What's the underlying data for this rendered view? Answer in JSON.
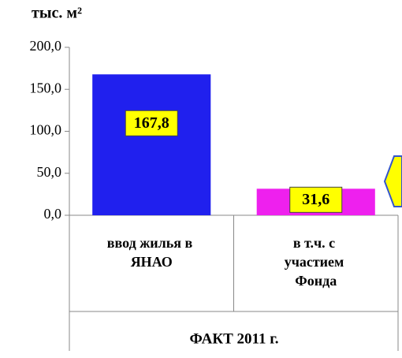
{
  "chart_data": {
    "type": "bar",
    "y_axis_label": "тыс. м²",
    "group_label": "ФАКТ 2011 г.",
    "categories": [
      "ввод жилья в ЯНАО",
      "в т.ч. с участием Фонда"
    ],
    "values": [
      167.8,
      31.6
    ],
    "value_labels": [
      "167,8",
      "31,6"
    ],
    "colors": [
      "#2020ee",
      "#ee20ee"
    ],
    "ylim": [
      0,
      200
    ],
    "yticks": [
      {
        "value": 0,
        "label": "0,0"
      },
      {
        "value": 50,
        "label": "50,0"
      },
      {
        "value": 100,
        "label": "100,0"
      },
      {
        "value": 150,
        "label": "150,0"
      },
      {
        "value": 200,
        "label": "200,0"
      }
    ],
    "grid": false
  }
}
